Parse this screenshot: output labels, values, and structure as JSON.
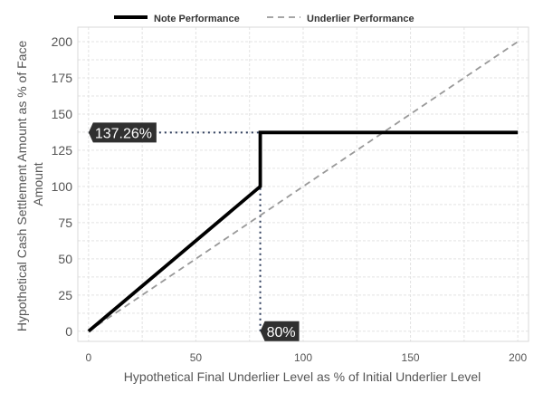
{
  "chart_data": {
    "type": "line",
    "xlabel": "Hypothetical Final Underlier Level as % of Initial Underlier Level",
    "ylabel_lines": [
      "Hypothetical Cash Settlement Amount as % of Face",
      "Amount"
    ],
    "xlim": [
      -5,
      205
    ],
    "ylim": [
      -7,
      210
    ],
    "xticks": [
      0,
      50,
      100,
      150,
      200
    ],
    "yticks": [
      0,
      25,
      50,
      75,
      100,
      125,
      150,
      175,
      200
    ],
    "grid": true,
    "legend_position": "top-center",
    "series": [
      {
        "name": "Note Performance",
        "style": "solid",
        "color": "#000000",
        "x": [
          0,
          80,
          80,
          200
        ],
        "y": [
          0,
          100,
          137.26,
          137.26
        ]
      },
      {
        "name": "Underlier Performance",
        "style": "dashed",
        "color": "#999999",
        "x": [
          0,
          200
        ],
        "y": [
          0,
          200
        ]
      }
    ],
    "annotations": [
      {
        "label": "137.26%",
        "kind": "horizontal",
        "y": 137.26,
        "x_from": 0,
        "x_to": 80,
        "color": "#2e3d5c"
      },
      {
        "label": "80%",
        "kind": "vertical",
        "x": 80,
        "y_from": 0,
        "y_to": 137.26,
        "color": "#2e3d5c"
      }
    ]
  }
}
